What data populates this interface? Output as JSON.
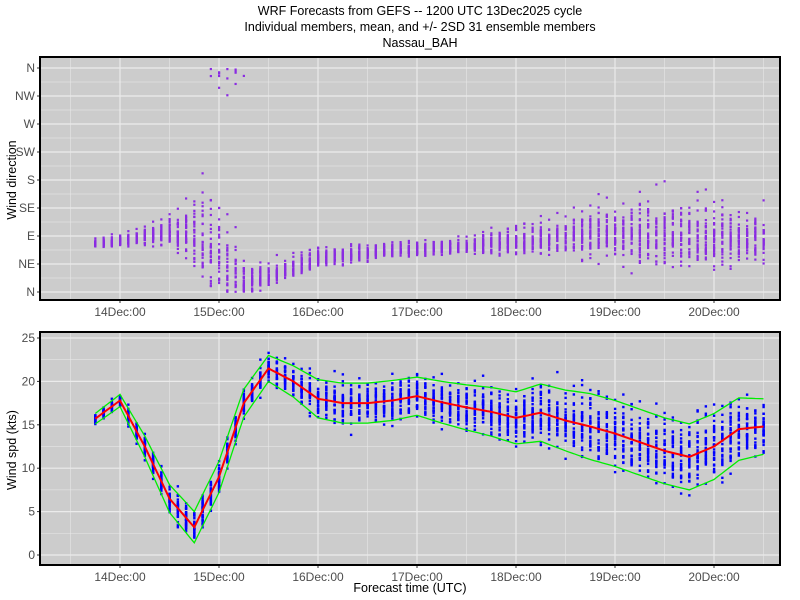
{
  "chart_data": [
    {
      "type": "scatter",
      "title": [
        "WRF Forecasts from GEFS --  1200 UTC 13Dec2025  cycle",
        "Individual members, mean, and +/- 2SD    31 ensemble members",
        "Nassau_BAH"
      ],
      "ylabel": "Wind direction",
      "yticks": [
        {
          "label": "N",
          "value": 360
        },
        {
          "label": "NW",
          "value": 315
        },
        {
          "label": "W",
          "value": 270
        },
        {
          "label": "SW",
          "value": 225
        },
        {
          "label": "S",
          "value": 180
        },
        {
          "label": "SE",
          "value": 135
        },
        {
          "label": "E",
          "value": 90
        },
        {
          "label": "NE",
          "value": 45
        },
        {
          "label": "N",
          "value": 0
        }
      ],
      "ylim": [
        -10,
        370
      ],
      "xticks": [
        "14Dec:00",
        "15Dec:00",
        "16Dec:00",
        "17Dec:00",
        "18Dec:00",
        "19Dec:00",
        "20Dec:00"
      ],
      "members": 31,
      "point_color": "#8a2be2",
      "hours_from_13Dec00": [
        18,
        24,
        30,
        36,
        42,
        48,
        54,
        60,
        66,
        72,
        78,
        84,
        90,
        96,
        102,
        108,
        114,
        120,
        126,
        132,
        138,
        144,
        150,
        156,
        162,
        168,
        174,
        180
      ],
      "dir_mean": [
        77,
        82,
        88,
        95,
        90,
        40,
        15,
        25,
        40,
        52,
        58,
        62,
        66,
        68,
        70,
        72,
        78,
        80,
        84,
        88,
        92,
        92,
        90,
        88,
        86,
        85,
        82,
        84
      ],
      "dir_spread": [
        4,
        5,
        8,
        12,
        30,
        60,
        15,
        10,
        10,
        9,
        8,
        7,
        7,
        6,
        6,
        6,
        10,
        12,
        15,
        18,
        22,
        25,
        28,
        30,
        30,
        30,
        22,
        20
      ]
    },
    {
      "type": "scatter",
      "xlabel": "Forecast time (UTC)",
      "ylabel": "Wind spd (kts)",
      "yticks": [
        0,
        5,
        10,
        15,
        20,
        25
      ],
      "ylim": [
        -1,
        25.8
      ],
      "xticks": [
        "14Dec:00",
        "15Dec:00",
        "16Dec:00",
        "17Dec:00",
        "18Dec:00",
        "19Dec:00",
        "20Dec:00"
      ],
      "members": 31,
      "colors": {
        "members": "#0000ff",
        "mean": "#ff0000",
        "two_sd": "#00ee00"
      },
      "hours_from_13Dec00": [
        18,
        24,
        30,
        36,
        42,
        48,
        54,
        60,
        66,
        72,
        78,
        84,
        90,
        96,
        102,
        108,
        114,
        120,
        126,
        132,
        138,
        144,
        150,
        156,
        162,
        168,
        174,
        180
      ],
      "mean": [
        15.7,
        17.8,
        12.5,
        6.5,
        3.2,
        9.0,
        17.5,
        21.5,
        20.0,
        18.0,
        17.5,
        17.5,
        17.8,
        18.3,
        17.6,
        17.0,
        16.5,
        15.8,
        16.4,
        15.5,
        14.8,
        14.0,
        13.0,
        12.0,
        11.3,
        12.5,
        14.5,
        14.8
      ],
      "two_sd": [
        0.6,
        0.7,
        1.2,
        1.6,
        1.8,
        1.8,
        1.6,
        1.5,
        1.8,
        2.2,
        2.3,
        2.3,
        2.3,
        2.2,
        2.4,
        2.6,
        2.8,
        3.0,
        3.3,
        3.5,
        3.8,
        3.8,
        3.8,
        3.8,
        3.8,
        3.8,
        3.6,
        3.2
      ]
    }
  ]
}
